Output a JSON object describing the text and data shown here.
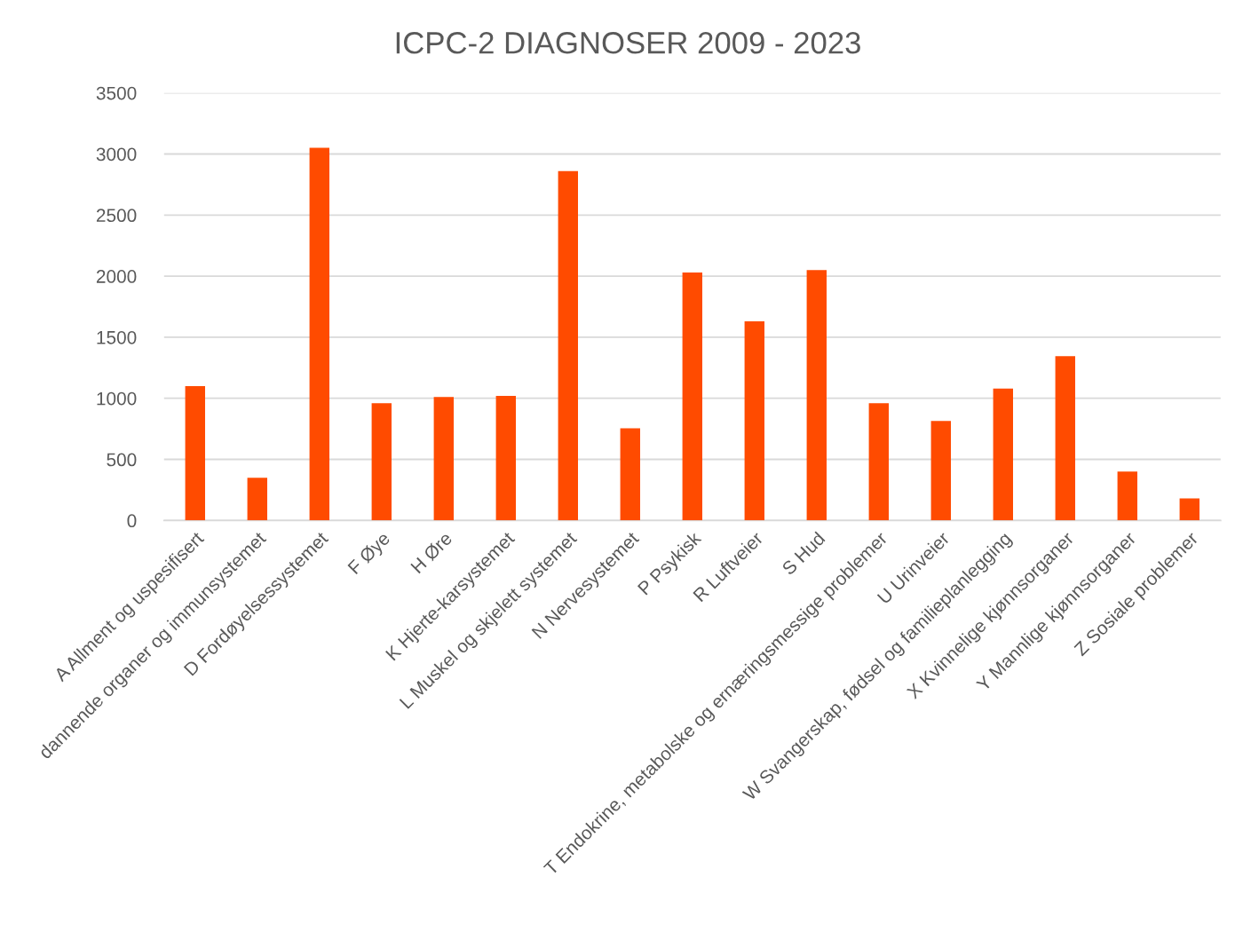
{
  "chart_data": {
    "type": "bar",
    "title": "ICPC-2 DIAGNOSER 2009 - 2023",
    "categories": [
      "A Allment og uspesifisert",
      "dannende organer og immunsystemet",
      "D Fordøyelsessystemet",
      "F Øye",
      "H Øre",
      "K Hjerte-karsystemet",
      "L Muskel og skjelett systemet",
      "N Nervesystemet",
      "P Psykisk",
      "R Luftveier",
      "S Hud",
      "T Endokrine, metabolske og ernæringsmessige problemer",
      "U Urinveier",
      "W Svangerskap, fødsel og familieplanlegging",
      "X Kvinnelige kjønnsorganer",
      "Y Mannlige kjønnsorganer",
      "Z Sosiale problemer"
    ],
    "values": [
      1100,
      350,
      3050,
      960,
      1010,
      1020,
      2860,
      755,
      2030,
      1630,
      2050,
      960,
      815,
      1080,
      1345,
      400,
      180
    ],
    "color": "#ff4b00",
    "ylim": [
      0,
      3500
    ],
    "yticks": [
      0,
      500,
      1000,
      1500,
      2000,
      2500,
      3000,
      3500
    ],
    "grid": "y",
    "legend": false
  }
}
